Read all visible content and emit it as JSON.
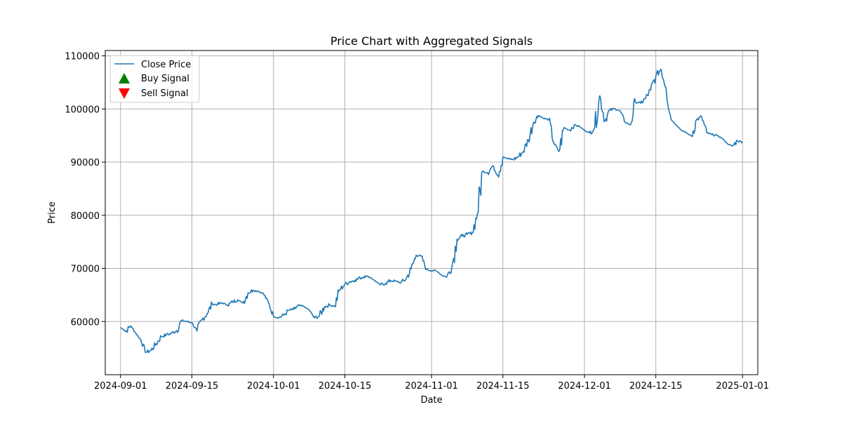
{
  "chart_data": {
    "type": "line",
    "title": "Price Chart with Aggregated Signals",
    "xlabel": "Date",
    "ylabel": "Price",
    "xlim": [
      "2024-08-29",
      "2025-01-04"
    ],
    "ylim": [
      50000,
      111000
    ],
    "grid": true,
    "legend_position": "top-left",
    "x_ticks": [
      "2024-09-01",
      "2024-09-15",
      "2024-10-01",
      "2024-10-15",
      "2024-11-01",
      "2024-11-15",
      "2024-12-01",
      "2024-12-15",
      "2025-01-01"
    ],
    "y_ticks": [
      60000,
      70000,
      80000,
      90000,
      100000,
      110000
    ],
    "colors": {
      "close": "#1f77b4",
      "buy": "#008000",
      "sell": "#ff0000",
      "grid": "#b0b0b0"
    },
    "series": [
      {
        "name": "Close Price",
        "x": [
          "2024-09-01",
          "2024-09-02",
          "2024-09-03",
          "2024-09-04",
          "2024-09-05",
          "2024-09-06",
          "2024-09-07",
          "2024-09-08",
          "2024-09-09",
          "2024-09-10",
          "2024-09-11",
          "2024-09-12",
          "2024-09-13",
          "2024-09-14",
          "2024-09-15",
          "2024-09-16",
          "2024-09-17",
          "2024-09-18",
          "2024-09-19",
          "2024-09-20",
          "2024-09-21",
          "2024-09-22",
          "2024-09-23",
          "2024-09-24",
          "2024-09-25",
          "2024-09-26",
          "2024-09-27",
          "2024-09-28",
          "2024-09-29",
          "2024-09-30",
          "2024-10-01",
          "2024-10-02",
          "2024-10-03",
          "2024-10-04",
          "2024-10-05",
          "2024-10-06",
          "2024-10-07",
          "2024-10-08",
          "2024-10-09",
          "2024-10-10",
          "2024-10-11",
          "2024-10-12",
          "2024-10-13",
          "2024-10-14",
          "2024-10-15",
          "2024-10-16",
          "2024-10-17",
          "2024-10-18",
          "2024-10-19",
          "2024-10-20",
          "2024-10-21",
          "2024-10-22",
          "2024-10-23",
          "2024-10-24",
          "2024-10-25",
          "2024-10-26",
          "2024-10-27",
          "2024-10-28",
          "2024-10-29",
          "2024-10-30",
          "2024-10-31",
          "2024-11-01",
          "2024-11-02",
          "2024-11-03",
          "2024-11-04",
          "2024-11-05",
          "2024-11-06",
          "2024-11-07",
          "2024-11-08",
          "2024-11-09",
          "2024-11-10",
          "2024-11-11",
          "2024-11-12",
          "2024-11-13",
          "2024-11-14",
          "2024-11-15",
          "2024-11-16",
          "2024-11-17",
          "2024-11-18",
          "2024-11-19",
          "2024-11-20",
          "2024-11-21",
          "2024-11-22",
          "2024-11-23",
          "2024-11-24",
          "2024-11-25",
          "2024-11-26",
          "2024-11-27",
          "2024-11-28",
          "2024-11-29",
          "2024-11-30",
          "2024-12-01",
          "2024-12-02",
          "2024-12-03",
          "2024-12-04",
          "2024-12-05",
          "2024-12-06",
          "2024-12-07",
          "2024-12-08",
          "2024-12-09",
          "2024-12-10",
          "2024-12-11",
          "2024-12-12",
          "2024-12-13",
          "2024-12-14",
          "2024-12-15",
          "2024-12-16",
          "2024-12-17",
          "2024-12-18",
          "2024-12-19",
          "2024-12-20",
          "2024-12-21",
          "2024-12-22",
          "2024-12-23",
          "2024-12-24",
          "2024-12-25",
          "2024-12-26",
          "2024-12-27",
          "2024-12-28",
          "2024-12-29",
          "2024-12-30",
          "2024-12-31",
          "2025-01-01"
        ],
        "values": [
          58900,
          58100,
          59200,
          57800,
          56500,
          54200,
          54600,
          55800,
          57200,
          57500,
          57800,
          58300,
          60200,
          60000,
          59800,
          58200,
          60400,
          61500,
          63300,
          63200,
          63500,
          63100,
          63700,
          64100,
          63500,
          65400,
          65900,
          65700,
          65300,
          63600,
          61000,
          60700,
          61200,
          62100,
          62300,
          63000,
          62800,
          62200,
          60700,
          61000,
          62800,
          63100,
          62900,
          66000,
          67000,
          67500,
          67800,
          68200,
          68600,
          68300,
          67600,
          66900,
          67200,
          67700,
          67600,
          67300,
          68000,
          69900,
          72500,
          72300,
          69800,
          69600,
          69500,
          68700,
          68400,
          70300,
          75500,
          76100,
          76400,
          76700,
          80300,
          88300,
          88000,
          89300,
          87500,
          91000,
          90600,
          90500,
          91000,
          92000,
          94200,
          97500,
          98800,
          98200,
          98000,
          93600,
          92000,
          96500,
          96000,
          97000,
          96700,
          96000,
          95500,
          96500,
          102500,
          97800,
          99800,
          100000,
          99600,
          97500,
          97000,
          101300,
          101100,
          102000,
          103600,
          106200,
          107500,
          104000,
          98000,
          97000,
          96000,
          95500,
          94900,
          98000,
          98500,
          95500,
          95200,
          95000,
          94500,
          93500,
          93000,
          94000,
          93800
        ]
      },
      {
        "name": "Buy Signal",
        "x": [],
        "values": []
      },
      {
        "name": "Sell Signal",
        "x": [],
        "values": []
      }
    ]
  }
}
